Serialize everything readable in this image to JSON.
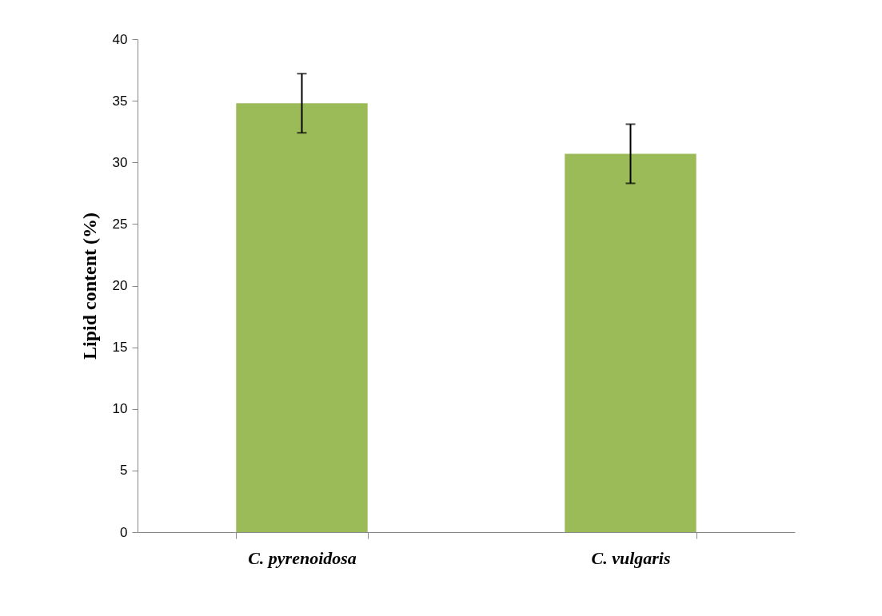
{
  "chart_data": {
    "type": "bar",
    "ylabel": "Lipid content (%)",
    "categories": [
      "C. pyrenoidosa",
      "C. vulgaris"
    ],
    "values": [
      34.8,
      30.7
    ],
    "errors": [
      2.4,
      2.4
    ],
    "color": "#9bbb59",
    "ylim": [
      0,
      40
    ],
    "yticks": [
      0,
      5,
      10,
      15,
      20,
      25,
      30,
      35,
      40
    ],
    "grid": false
  }
}
